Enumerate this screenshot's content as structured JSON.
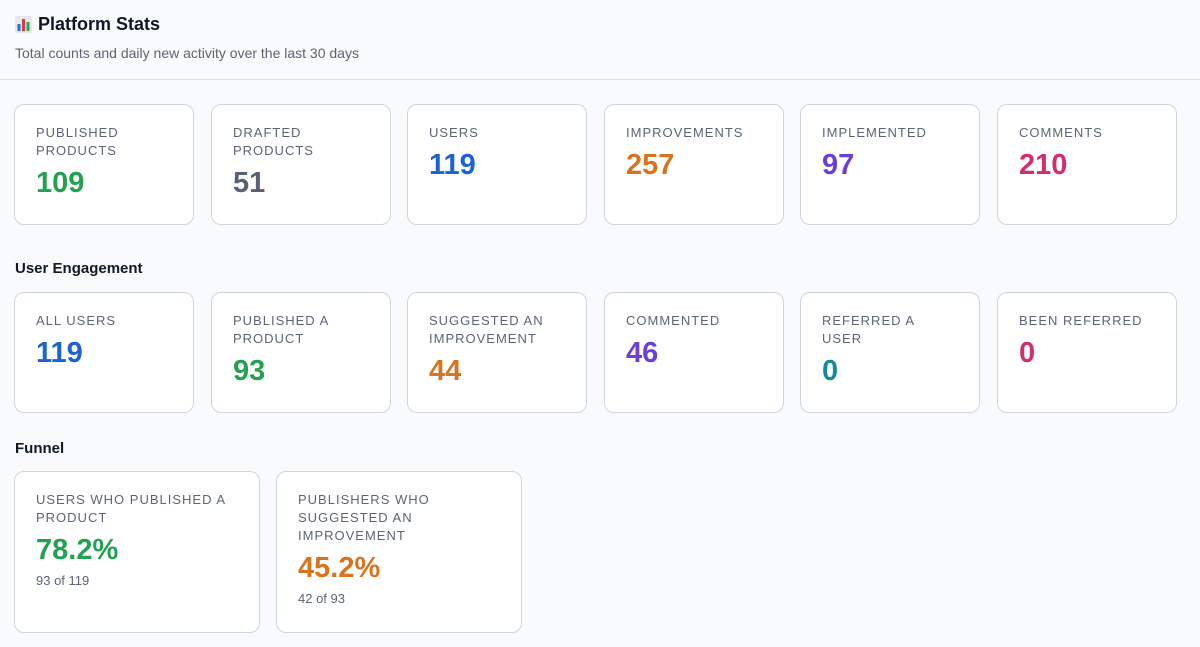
{
  "header": {
    "title": "Platform Stats",
    "icon": "bar-chart-icon",
    "subtitle": "Total counts and daily new activity over the last 30 days"
  },
  "totals": [
    {
      "label": "PUBLISHED PRODUCTS",
      "value": "109",
      "color": "#24a150"
    },
    {
      "label": "DRAFTED PRODUCTS",
      "value": "51",
      "color": "#566173"
    },
    {
      "label": "USERS",
      "value": "119",
      "color": "#1a62d6"
    },
    {
      "label": "IMPROVEMENTS",
      "value": "257",
      "color": "#d67420"
    },
    {
      "label": "IMPLEMENTED",
      "value": "97",
      "color": "#6d3fd6"
    },
    {
      "label": "COMMENTS",
      "value": "210",
      "color": "#d02d73"
    }
  ],
  "engagement": {
    "title": "User Engagement",
    "cards": [
      {
        "label": "ALL USERS",
        "value": "119",
        "color": "#1a62d6"
      },
      {
        "label": "PUBLISHED A PRODUCT",
        "value": "93",
        "color": "#24a150"
      },
      {
        "label": "SUGGESTED AN IMPROVEMENT",
        "value": "44",
        "color": "#d67420"
      },
      {
        "label": "COMMENTED",
        "value": "46",
        "color": "#6d3fd6"
      },
      {
        "label": "REFERRED A USER",
        "value": "0",
        "color": "#138aa0"
      },
      {
        "label": "BEEN REFERRED",
        "value": "0",
        "color": "#d02d73"
      }
    ]
  },
  "funnel": {
    "title": "Funnel",
    "cards": [
      {
        "label": "USERS WHO PUBLISHED A PRODUCT",
        "value": "78.2%",
        "detail": "93 of 119",
        "color": "#24a150"
      },
      {
        "label": "PUBLISHERS WHO SUGGESTED AN IMPROVEMENT",
        "value": "45.2%",
        "detail": "42 of 93",
        "color": "#d67420"
      }
    ]
  }
}
